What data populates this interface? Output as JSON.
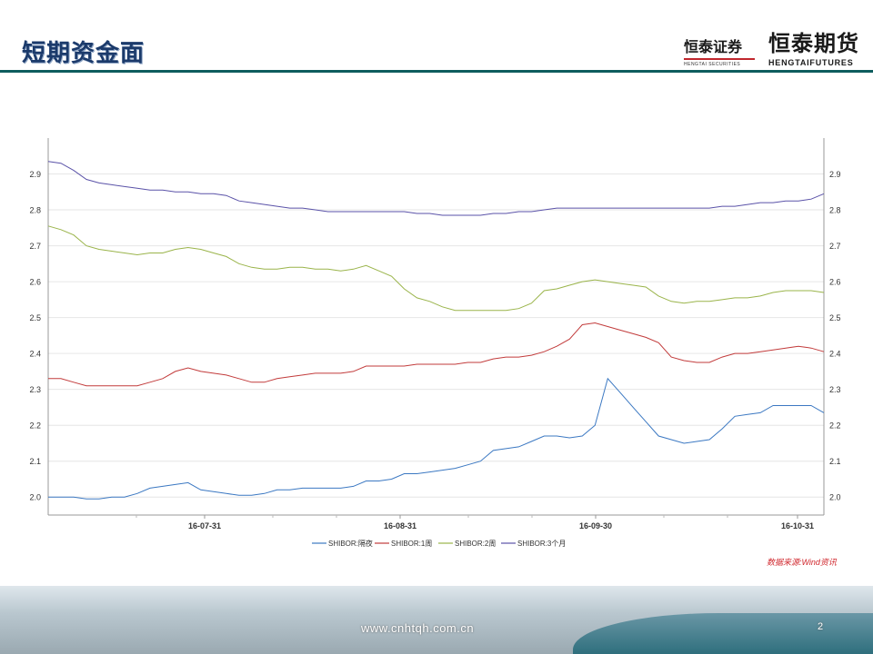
{
  "slide": {
    "title": "短期资金面",
    "logo_securities": "恒泰证券",
    "logo_securities_en": "HENGTAI SECURITIES",
    "logo_futures": "恒泰期货",
    "logo_futures_en": "HENGTAIFUTURES",
    "source": "数据来源:Wind资讯",
    "url": "www.cnhtqh.com.cn",
    "page_number": "2"
  },
  "chart_data": {
    "type": "line",
    "title": "",
    "xlabel": "",
    "ylabel": "",
    "x_ticks": [
      "16-07-31",
      "16-08-31",
      "16-09-30",
      "16-10-31"
    ],
    "y_ticks": [
      "2.0",
      "2.1",
      "2.2",
      "2.3",
      "2.4",
      "2.5",
      "2.6",
      "2.7",
      "2.8",
      "2.9"
    ],
    "ylim": [
      1.95,
      3.0
    ],
    "grid": true,
    "legend_position": "bottom",
    "series": [
      {
        "name": "SHIBOR:隔夜",
        "color": "#3b78c2",
        "values": [
          2.0,
          2.0,
          2.0,
          1.995,
          1.995,
          2.0,
          2.0,
          2.01,
          2.025,
          2.03,
          2.035,
          2.04,
          2.02,
          2.015,
          2.01,
          2.005,
          2.005,
          2.01,
          2.02,
          2.02,
          2.025,
          2.025,
          2.025,
          2.025,
          2.03,
          2.045,
          2.045,
          2.05,
          2.065,
          2.065,
          2.07,
          2.075,
          2.08,
          2.09,
          2.1,
          2.13,
          2.135,
          2.14,
          2.155,
          2.17,
          2.17,
          2.165,
          2.17,
          2.2,
          2.33,
          2.29,
          2.25,
          2.21,
          2.17,
          2.16,
          2.15,
          2.155,
          2.16,
          2.19,
          2.225,
          2.23,
          2.235,
          2.255,
          2.255,
          2.255,
          2.255,
          2.235
        ]
      },
      {
        "name": "SHIBOR:1周",
        "color": "#c23b3b",
        "values": [
          2.33,
          2.33,
          2.32,
          2.31,
          2.31,
          2.31,
          2.31,
          2.31,
          2.32,
          2.33,
          2.35,
          2.36,
          2.35,
          2.345,
          2.34,
          2.33,
          2.32,
          2.32,
          2.33,
          2.335,
          2.34,
          2.345,
          2.345,
          2.345,
          2.35,
          2.365,
          2.365,
          2.365,
          2.365,
          2.37,
          2.37,
          2.37,
          2.37,
          2.375,
          2.375,
          2.385,
          2.39,
          2.39,
          2.395,
          2.405,
          2.42,
          2.44,
          2.48,
          2.485,
          2.475,
          2.465,
          2.455,
          2.445,
          2.43,
          2.39,
          2.38,
          2.375,
          2.375,
          2.39,
          2.4,
          2.4,
          2.405,
          2.41,
          2.415,
          2.42,
          2.415,
          2.405
        ]
      },
      {
        "name": "SHIBOR:2周",
        "color": "#9ab44a",
        "values": [
          2.755,
          2.745,
          2.73,
          2.7,
          2.69,
          2.685,
          2.68,
          2.675,
          2.68,
          2.68,
          2.69,
          2.695,
          2.69,
          2.68,
          2.67,
          2.65,
          2.64,
          2.635,
          2.635,
          2.64,
          2.64,
          2.635,
          2.635,
          2.63,
          2.635,
          2.645,
          2.63,
          2.615,
          2.58,
          2.555,
          2.545,
          2.53,
          2.52,
          2.52,
          2.52,
          2.52,
          2.52,
          2.525,
          2.54,
          2.575,
          2.58,
          2.59,
          2.6,
          2.605,
          2.6,
          2.595,
          2.59,
          2.585,
          2.56,
          2.545,
          2.54,
          2.545,
          2.545,
          2.55,
          2.555,
          2.555,
          2.56,
          2.57,
          2.575,
          2.575,
          2.575,
          2.57
        ]
      },
      {
        "name": "SHIBOR:3个月",
        "color": "#5a52a8",
        "values": [
          2.935,
          2.93,
          2.91,
          2.885,
          2.875,
          2.87,
          2.865,
          2.86,
          2.855,
          2.855,
          2.85,
          2.85,
          2.845,
          2.845,
          2.84,
          2.825,
          2.82,
          2.815,
          2.81,
          2.805,
          2.805,
          2.8,
          2.795,
          2.795,
          2.795,
          2.795,
          2.795,
          2.795,
          2.795,
          2.79,
          2.79,
          2.785,
          2.785,
          2.785,
          2.785,
          2.79,
          2.79,
          2.795,
          2.795,
          2.8,
          2.805,
          2.805,
          2.805,
          2.805,
          2.805,
          2.805,
          2.805,
          2.805,
          2.805,
          2.805,
          2.805,
          2.805,
          2.805,
          2.81,
          2.81,
          2.815,
          2.82,
          2.82,
          2.825,
          2.825,
          2.83,
          2.845
        ]
      }
    ]
  }
}
